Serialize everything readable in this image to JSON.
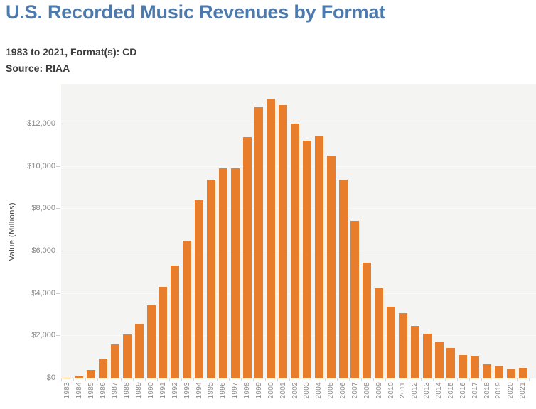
{
  "header": {
    "title": "U.S. Recorded Music Revenues by Format",
    "subtitle": "1983 to 2021, Format(s): CD",
    "source": "Source: RIAA"
  },
  "chart_data": {
    "type": "bar",
    "title": "U.S. Recorded Music Revenues by Format",
    "subtitle": "1983 to 2021, Format(s): CD",
    "source": "Source: RIAA",
    "unit": "USD millions",
    "categories": [
      "1983",
      "1984",
      "1985",
      "1986",
      "1987",
      "1988",
      "1989",
      "1990",
      "1991",
      "1992",
      "1993",
      "1994",
      "1995",
      "1996",
      "1997",
      "1998",
      "1999",
      "2000",
      "2001",
      "2002",
      "2003",
      "2004",
      "2005",
      "2006",
      "2007",
      "2008",
      "2009",
      "2010",
      "2011",
      "2012",
      "2013",
      "2014",
      "2015",
      "2016",
      "2017",
      "2018",
      "2019",
      "2020",
      "2021"
    ],
    "values": [
      17.2,
      103.3,
      389.5,
      930.1,
      1593.6,
      2089.9,
      2587.7,
      3451.6,
      4337.7,
      5326.5,
      6511.4,
      8464.5,
      9377.4,
      9934.7,
      9915.1,
      11416.0,
      12816.3,
      13214.5,
      12909.4,
      12044.1,
      11232.9,
      11446.5,
      10520.2,
      9372.6,
      7452.3,
      5471.3,
      4272.7,
      3389.4,
      3100.7,
      2485.5,
      2121.9,
      1740,
      1436,
      1105,
      1030,
      675,
      615,
      445,
      520
    ],
    "xlabel": "",
    "ylabel": "Value (Millions)",
    "ylim": [
      0,
      13880
    ],
    "ytick_step": 2000,
    "ytick_labels": [
      "$0",
      "$2,000",
      "$4,000",
      "$6,000",
      "$8,000",
      "$10,000",
      "$12,000"
    ],
    "grid": "faint horizontal",
    "legend_position": "none",
    "bar_color": "#e87d2c",
    "plot_background": "#f4f4f3"
  },
  "colors": {
    "title": "#4d7aad",
    "subtitle": "#3c3c3c",
    "axis_text": "#8a8a8a",
    "axis_title": "#474747",
    "bar": "#e87d2c",
    "plot_bg": "#f4f4f3",
    "tick": "#cfcfcf"
  }
}
